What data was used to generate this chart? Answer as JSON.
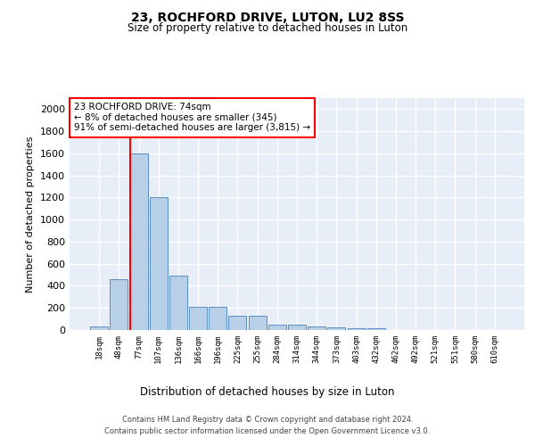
{
  "title": "23, ROCHFORD DRIVE, LUTON, LU2 8SS",
  "subtitle": "Size of property relative to detached houses in Luton",
  "xlabel": "Distribution of detached houses by size in Luton",
  "ylabel": "Number of detached properties",
  "categories": [
    "18sqm",
    "48sqm",
    "77sqm",
    "107sqm",
    "136sqm",
    "166sqm",
    "196sqm",
    "225sqm",
    "255sqm",
    "284sqm",
    "314sqm",
    "344sqm",
    "373sqm",
    "403sqm",
    "432sqm",
    "462sqm",
    "492sqm",
    "521sqm",
    "551sqm",
    "580sqm",
    "610sqm"
  ],
  "values": [
    35,
    460,
    1600,
    1200,
    490,
    210,
    210,
    130,
    130,
    45,
    45,
    30,
    25,
    20,
    15,
    0,
    0,
    0,
    0,
    0,
    0
  ],
  "bar_color": "#b8cfe8",
  "bar_edge_color": "#5b8ec4",
  "red_line_index": 2,
  "annotation_text": "23 ROCHFORD DRIVE: 74sqm\n← 8% of detached houses are smaller (345)\n91% of semi-detached houses are larger (3,815) →",
  "annotation_box_color": "white",
  "annotation_box_edge_color": "red",
  "red_line_color": "red",
  "bg_color": "#e8eef8",
  "grid_color": "white",
  "ylim": [
    0,
    2100
  ],
  "yticks": [
    0,
    200,
    400,
    600,
    800,
    1000,
    1200,
    1400,
    1600,
    1800,
    2000
  ],
  "footer_line1": "Contains HM Land Registry data © Crown copyright and database right 2024.",
  "footer_line2": "Contains public sector information licensed under the Open Government Licence v3.0."
}
